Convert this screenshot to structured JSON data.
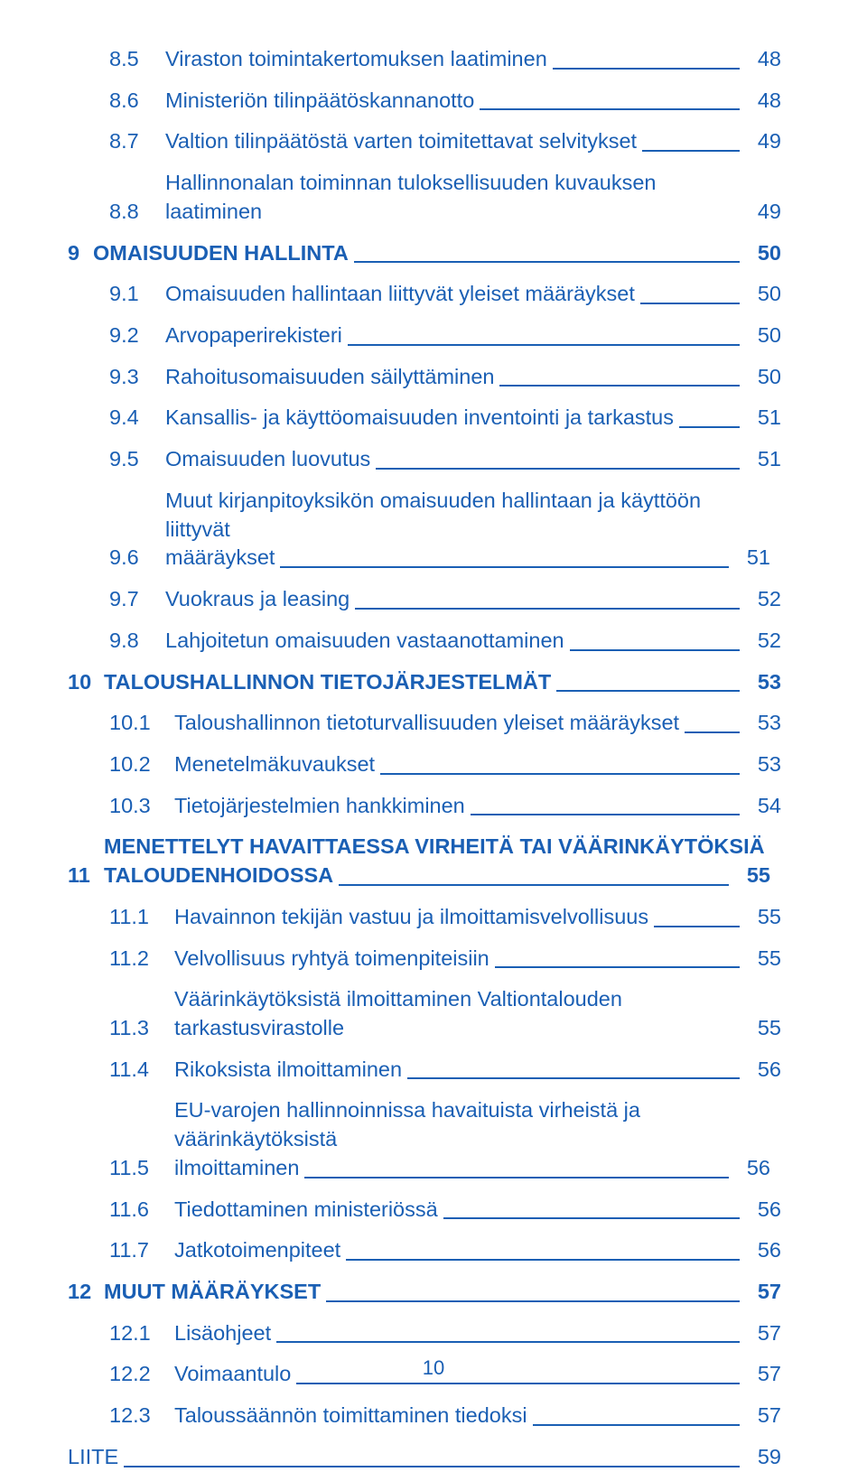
{
  "colors": {
    "text": "#1a5fb4",
    "background": "#ffffff"
  },
  "typography": {
    "font_family": "Arial",
    "size_pt": 17,
    "weight_section": "bold",
    "weight_sub": "normal"
  },
  "toc": [
    {
      "type": "sub",
      "num": "8.5",
      "label": "Viraston toimintakertomuksen laatiminen",
      "page": "48"
    },
    {
      "type": "sub",
      "num": "8.6",
      "label": "Ministeriön tilinpäätöskannanotto",
      "page": "48"
    },
    {
      "type": "sub",
      "num": "8.7",
      "label": "Valtion tilinpäätöstä varten toimitettavat selvitykset",
      "page": "49"
    },
    {
      "type": "sub",
      "num": "8.8",
      "label": "Hallinnonalan toiminnan tuloksellisuuden kuvauksen laatiminen",
      "page": "49"
    },
    {
      "type": "section",
      "num": "9",
      "label": "OMAISUUDEN HALLINTA",
      "page": "50",
      "cls": "s9"
    },
    {
      "type": "sub",
      "num": "9.1",
      "label": "Omaisuuden hallintaan liittyvät yleiset määräykset",
      "page": "50"
    },
    {
      "type": "sub",
      "num": "9.2",
      "label": "Arvopaperirekisteri",
      "page": "50"
    },
    {
      "type": "sub",
      "num": "9.3",
      "label": "Rahoitusomaisuuden säilyttäminen",
      "page": "50"
    },
    {
      "type": "sub",
      "num": "9.4",
      "label": "Kansallis- ja käyttöomaisuuden inventointi ja tarkastus",
      "page": "51"
    },
    {
      "type": "sub",
      "num": "9.5",
      "label": "Omaisuuden luovutus",
      "page": "51"
    },
    {
      "type": "sub",
      "num": "9.6",
      "label": "Muut kirjanpitoyksikön omaisuuden hallintaan ja käyttöön liittyvät määräykset",
      "page": "51",
      "multiline": true,
      "line1": "Muut kirjanpitoyksikön omaisuuden hallintaan ja käyttöön liittyvät",
      "line2": "määräykset"
    },
    {
      "type": "sub",
      "num": "9.7",
      "label": "Vuokraus ja leasing",
      "page": "52"
    },
    {
      "type": "sub",
      "num": "9.8",
      "label": "Lahjoitetun omaisuuden vastaanottaminen",
      "page": "52"
    },
    {
      "type": "section",
      "num": "10",
      "label": "TALOUSHALLINNON TIETOJÄRJESTELMÄT",
      "page": "53",
      "cls": "s10n"
    },
    {
      "type": "sub",
      "num": "10.1",
      "label": "Taloushallinnon tietoturvallisuuden yleiset määräykset",
      "page": "53",
      "cls": "s10"
    },
    {
      "type": "sub",
      "num": "10.2",
      "label": "Menetelmäkuvaukset",
      "page": "53",
      "cls": "s10"
    },
    {
      "type": "sub",
      "num": "10.3",
      "label": "Tietojärjestelmien hankkiminen",
      "page": "54",
      "cls": "s10"
    },
    {
      "type": "section",
      "num": "11",
      "label": "MENETTELYT HAVAITTAESSA VIRHEITÄ TAI VÄÄRINKÄYTÖKSIÄ TALOUDENHOIDOSSA",
      "page": "55",
      "cls": "s11n",
      "multiline": true,
      "line1": "MENETTELYT HAVAITTAESSA VIRHEITÄ TAI VÄÄRINKÄYTÖKSIÄ",
      "line2": "TALOUDENHOIDOSSA"
    },
    {
      "type": "sub",
      "num": "11.1",
      "label": "Havainnon tekijän vastuu ja ilmoittamisvelvollisuus",
      "page": "55",
      "cls": "s11"
    },
    {
      "type": "sub",
      "num": "11.2",
      "label": "Velvollisuus ryhtyä toimenpiteisiin",
      "page": "55",
      "cls": "s11"
    },
    {
      "type": "sub",
      "num": "11.3",
      "label": "Väärinkäytöksistä ilmoittaminen Valtiontalouden tarkastusvirastolle",
      "page": "55",
      "cls": "s11"
    },
    {
      "type": "sub",
      "num": "11.4",
      "label": "Rikoksista ilmoittaminen",
      "page": "56",
      "cls": "s11"
    },
    {
      "type": "sub",
      "num": "11.5",
      "label": "EU-varojen hallinnoinnissa havaituista virheistä ja väärinkäytöksistä ilmoittaminen",
      "page": "56",
      "cls": "s11",
      "multiline": true,
      "line1": "EU-varojen hallinnoinnissa havaituista virheistä ja väärinkäytöksistä",
      "line2": "ilmoittaminen"
    },
    {
      "type": "sub",
      "num": "11.6",
      "label": "Tiedottaminen ministeriössä",
      "page": "56",
      "cls": "s11"
    },
    {
      "type": "sub",
      "num": "11.7",
      "label": "Jatkotoimenpiteet",
      "page": "56",
      "cls": "s11"
    },
    {
      "type": "section",
      "num": "12",
      "label": "MUUT MÄÄRÄYKSET",
      "page": "57",
      "cls": "s12n"
    },
    {
      "type": "sub",
      "num": "12.1",
      "label": "Lisäohjeet",
      "page": "57",
      "cls": "s12"
    },
    {
      "type": "sub",
      "num": "12.2",
      "label": "Voimaantulo",
      "page": "57",
      "cls": "s12"
    },
    {
      "type": "sub",
      "num": "12.3",
      "label": "Taloussäännön toimittaminen tiedoksi",
      "page": "57",
      "cls": "s12"
    },
    {
      "type": "liite",
      "num": "",
      "label": "LIITE",
      "page": "59"
    }
  ],
  "page_number": "10"
}
